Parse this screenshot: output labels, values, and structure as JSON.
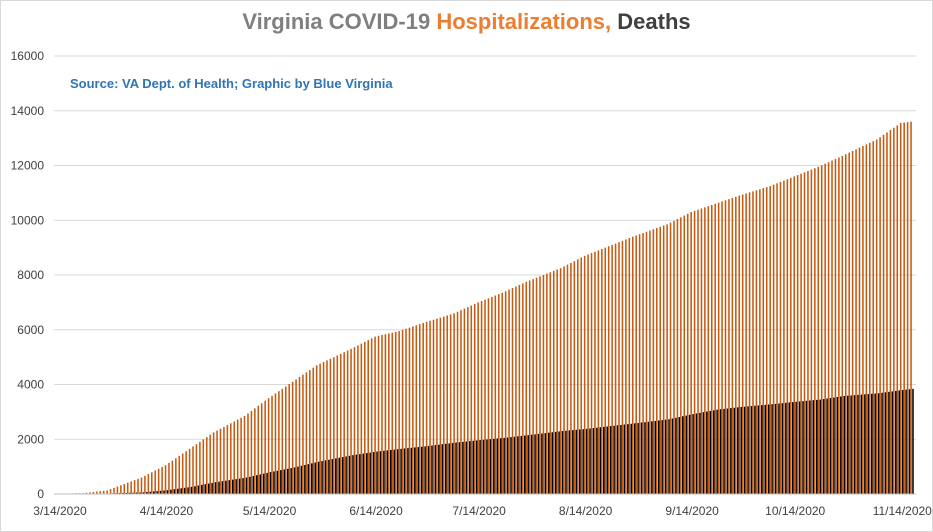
{
  "chart_data": {
    "type": "bar",
    "title_parts": [
      {
        "text": "Virginia COVID-19 ",
        "color": "#7f7f7f"
      },
      {
        "text": "Hospitalizations, ",
        "color": "#ed7d31"
      },
      {
        "text": "Deaths",
        "color": "#404040"
      }
    ],
    "annotation": "Source: VA Dept. of Health; Graphic by Blue Virginia",
    "ylim": [
      0,
      16000
    ],
    "yticks": [
      0,
      2000,
      4000,
      6000,
      8000,
      10000,
      12000,
      14000,
      16000
    ],
    "xticks": [
      "3/14/2020",
      "4/14/2020",
      "5/14/2020",
      "6/14/2020",
      "7/14/2020",
      "8/14/2020",
      "9/14/2020",
      "10/14/2020",
      "11/14/2020"
    ],
    "grid": true,
    "legend": "none",
    "x_start": "3/14/2020",
    "x_end": "11/14/2020",
    "series_colors": {
      "hospitalizations": "#c55a11",
      "deaths": "#000000"
    },
    "series": [
      {
        "key": "hospitalizations",
        "keypoints": [
          [
            "3/14/2020",
            10
          ],
          [
            "3/21/2020",
            30
          ],
          [
            "3/28/2020",
            130
          ],
          [
            "4/7/2020",
            600
          ],
          [
            "4/14/2020",
            1050
          ],
          [
            "4/21/2020",
            1650
          ],
          [
            "4/28/2020",
            2250
          ],
          [
            "5/7/2020",
            2850
          ],
          [
            "5/14/2020",
            3500
          ],
          [
            "5/21/2020",
            4100
          ],
          [
            "5/28/2020",
            4700
          ],
          [
            "6/7/2020",
            5300
          ],
          [
            "6/14/2020",
            5750
          ],
          [
            "6/21/2020",
            5950
          ],
          [
            "6/28/2020",
            6250
          ],
          [
            "7/7/2020",
            6600
          ],
          [
            "7/14/2020",
            7000
          ],
          [
            "7/21/2020",
            7350
          ],
          [
            "7/28/2020",
            7750
          ],
          [
            "8/7/2020",
            8250
          ],
          [
            "8/14/2020",
            8700
          ],
          [
            "8/21/2020",
            9050
          ],
          [
            "8/28/2020",
            9400
          ],
          [
            "9/7/2020",
            9850
          ],
          [
            "9/14/2020",
            10300
          ],
          [
            "9/21/2020",
            10600
          ],
          [
            "9/28/2020",
            10900
          ],
          [
            "10/7/2020",
            11250
          ],
          [
            "10/14/2020",
            11600
          ],
          [
            "10/21/2020",
            11950
          ],
          [
            "10/28/2020",
            12350
          ],
          [
            "11/7/2020",
            12950
          ],
          [
            "11/14/2020",
            13550
          ],
          [
            "11/17/2020",
            13600
          ]
        ]
      },
      {
        "key": "deaths",
        "keypoints": [
          [
            "3/14/2020",
            0
          ],
          [
            "3/21/2020",
            5
          ],
          [
            "3/28/2020",
            20
          ],
          [
            "4/7/2020",
            60
          ],
          [
            "4/14/2020",
            140
          ],
          [
            "4/21/2020",
            260
          ],
          [
            "4/28/2020",
            430
          ],
          [
            "5/7/2020",
            600
          ],
          [
            "5/14/2020",
            800
          ],
          [
            "5/21/2020",
            970
          ],
          [
            "5/28/2020",
            1180
          ],
          [
            "6/7/2020",
            1420
          ],
          [
            "6/14/2020",
            1550
          ],
          [
            "6/21/2020",
            1650
          ],
          [
            "6/28/2020",
            1740
          ],
          [
            "7/7/2020",
            1880
          ],
          [
            "7/14/2020",
            1970
          ],
          [
            "7/21/2020",
            2050
          ],
          [
            "7/28/2020",
            2150
          ],
          [
            "8/7/2020",
            2300
          ],
          [
            "8/14/2020",
            2380
          ],
          [
            "8/21/2020",
            2480
          ],
          [
            "8/28/2020",
            2580
          ],
          [
            "9/7/2020",
            2730
          ],
          [
            "9/14/2020",
            2920
          ],
          [
            "9/21/2020",
            3080
          ],
          [
            "9/28/2020",
            3180
          ],
          [
            "10/7/2020",
            3280
          ],
          [
            "10/14/2020",
            3370
          ],
          [
            "10/21/2020",
            3450
          ],
          [
            "10/28/2020",
            3580
          ],
          [
            "11/7/2020",
            3680
          ],
          [
            "11/14/2020",
            3800
          ],
          [
            "11/17/2020",
            3840
          ]
        ]
      }
    ]
  }
}
